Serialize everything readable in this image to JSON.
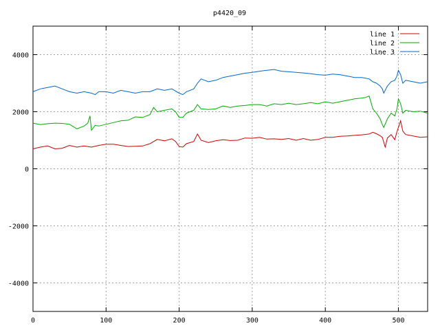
{
  "chart_data": {
    "type": "line",
    "title": "p4420_09",
    "xlabel": "",
    "ylabel": "",
    "xlim": [
      0,
      540
    ],
    "ylim": [
      -5000,
      5000
    ],
    "xticks": [
      0,
      100,
      200,
      300,
      400,
      500
    ],
    "yticks": [
      -4000,
      -2000,
      0,
      2000,
      4000
    ],
    "xtick_labels": [
      "0",
      "100",
      "200",
      "300",
      "400",
      "500"
    ],
    "ytick_labels": [
      "-4000",
      "-2000",
      "0",
      "2000",
      "4000"
    ],
    "grid": true,
    "grid_style": "dotted",
    "legend_position": "top-right",
    "series": [
      {
        "name": "line 1",
        "color": "#cc0000",
        "x": [
          0,
          10,
          20,
          30,
          40,
          50,
          60,
          70,
          80,
          90,
          100,
          110,
          120,
          130,
          140,
          150,
          160,
          170,
          180,
          190,
          195,
          200,
          205,
          210,
          220,
          225,
          230,
          240,
          250,
          260,
          270,
          280,
          290,
          300,
          310,
          320,
          330,
          340,
          350,
          360,
          370,
          380,
          390,
          400,
          410,
          420,
          430,
          440,
          450,
          460,
          465,
          470,
          475,
          478,
          482,
          485,
          490,
          495,
          498,
          500,
          503,
          506,
          510,
          520,
          530,
          540
        ],
        "y": [
          700,
          760,
          800,
          700,
          720,
          820,
          760,
          800,
          760,
          820,
          860,
          860,
          820,
          780,
          790,
          800,
          880,
          1030,
          980,
          1050,
          960,
          780,
          760,
          880,
          960,
          1220,
          1000,
          920,
          980,
          1020,
          990,
          1000,
          1080,
          1070,
          1100,
          1040,
          1050,
          1030,
          1060,
          1000,
          1060,
          1000,
          1030,
          1100,
          1100,
          1140,
          1150,
          1170,
          1190,
          1220,
          1280,
          1230,
          1160,
          1100,
          760,
          1080,
          1200,
          1020,
          1300,
          1450,
          1680,
          1320,
          1200,
          1150,
          1100,
          1120
        ]
      },
      {
        "name": "line 2",
        "color": "#00aa00",
        "x": [
          0,
          10,
          20,
          30,
          40,
          50,
          60,
          70,
          75,
          78,
          80,
          85,
          90,
          100,
          110,
          120,
          130,
          140,
          150,
          160,
          165,
          170,
          180,
          190,
          195,
          200,
          205,
          210,
          220,
          225,
          230,
          240,
          250,
          260,
          270,
          280,
          290,
          300,
          310,
          320,
          330,
          340,
          350,
          360,
          370,
          380,
          390,
          400,
          410,
          420,
          430,
          440,
          450,
          455,
          460,
          465,
          470,
          475,
          478,
          480,
          485,
          490,
          495,
          498,
          500,
          503,
          506,
          510,
          520,
          530,
          540
        ],
        "y": [
          1600,
          1550,
          1580,
          1600,
          1590,
          1560,
          1400,
          1500,
          1600,
          1850,
          1350,
          1520,
          1500,
          1560,
          1620,
          1680,
          1700,
          1820,
          1800,
          1900,
          2150,
          2000,
          2050,
          2100,
          2000,
          1800,
          1800,
          1950,
          2050,
          2250,
          2100,
          2080,
          2100,
          2200,
          2150,
          2200,
          2220,
          2250,
          2250,
          2200,
          2280,
          2250,
          2300,
          2250,
          2280,
          2320,
          2280,
          2350,
          2300,
          2350,
          2400,
          2450,
          2480,
          2500,
          2550,
          2100,
          1950,
          1750,
          1550,
          1450,
          1750,
          1950,
          1850,
          2100,
          2450,
          2280,
          1950,
          2050,
          2000,
          2020,
          1950
        ]
      },
      {
        "name": "line 3",
        "color": "#0066cc",
        "x": [
          0,
          10,
          20,
          30,
          40,
          50,
          60,
          70,
          80,
          85,
          90,
          100,
          110,
          120,
          130,
          140,
          150,
          160,
          170,
          180,
          190,
          200,
          205,
          210,
          220,
          225,
          230,
          240,
          250,
          260,
          270,
          280,
          290,
          300,
          310,
          320,
          330,
          340,
          350,
          360,
          370,
          380,
          390,
          400,
          410,
          420,
          430,
          440,
          450,
          460,
          465,
          470,
          475,
          478,
          480,
          485,
          490,
          495,
          498,
          500,
          503,
          506,
          510,
          520,
          530,
          540
        ],
        "y": [
          2700,
          2800,
          2850,
          2900,
          2800,
          2700,
          2650,
          2700,
          2650,
          2600,
          2700,
          2700,
          2650,
          2750,
          2700,
          2650,
          2700,
          2700,
          2800,
          2750,
          2800,
          2650,
          2600,
          2700,
          2800,
          3000,
          3150,
          3050,
          3100,
          3200,
          3250,
          3300,
          3350,
          3380,
          3420,
          3450,
          3480,
          3420,
          3400,
          3380,
          3360,
          3330,
          3300,
          3280,
          3320,
          3300,
          3250,
          3200,
          3200,
          3150,
          3050,
          3000,
          2900,
          2800,
          2650,
          2900,
          3050,
          3100,
          3250,
          3450,
          3300,
          3000,
          3100,
          3050,
          3000,
          3050
        ]
      }
    ]
  }
}
